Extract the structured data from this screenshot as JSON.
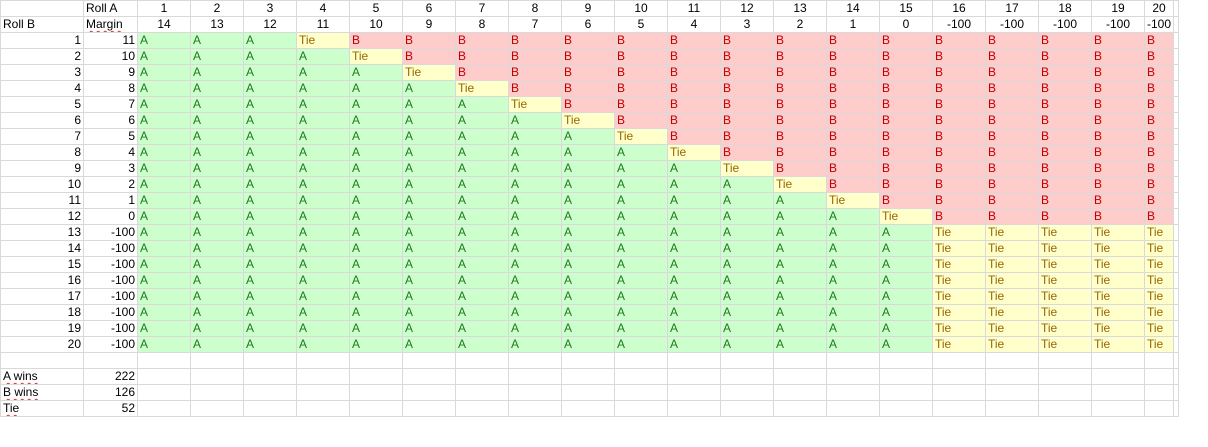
{
  "labels": {
    "roll_a": "Roll A",
    "margin": "Margin",
    "roll_b": "Roll B"
  },
  "roll_a": [
    "1",
    "2",
    "3",
    "4",
    "5",
    "6",
    "7",
    "8",
    "9",
    "10",
    "11",
    "12",
    "13",
    "14",
    "15",
    "16",
    "17",
    "18",
    "19",
    "20"
  ],
  "margin_a": [
    "14",
    "13",
    "12",
    "11",
    "10",
    "9",
    "8",
    "7",
    "6",
    "5",
    "4",
    "3",
    "2",
    "1",
    "0",
    "-100",
    "-100",
    "-100",
    "-100",
    "-100"
  ],
  "roll_b": [
    "1",
    "2",
    "3",
    "4",
    "5",
    "6",
    "7",
    "8",
    "9",
    "10",
    "11",
    "12",
    "13",
    "14",
    "15",
    "16",
    "17",
    "18",
    "19",
    "20"
  ],
  "margin_b": [
    "11",
    "10",
    "9",
    "8",
    "7",
    "6",
    "5",
    "4",
    "3",
    "2",
    "1",
    "0",
    "-100",
    "-100",
    "-100",
    "-100",
    "-100",
    "-100",
    "-100",
    "-100"
  ],
  "result_labels": {
    "a": "A",
    "b": "B",
    "tie": "Tie"
  },
  "colors": {
    "a_bg": "#ccffcc",
    "a_fg": "#1f7a1f",
    "b_bg": "#ffcccc",
    "b_fg": "#c00000",
    "tie_bg": "#ffffcc",
    "tie_fg": "#996600"
  },
  "summary": [
    {
      "label": "A wins",
      "value": "222"
    },
    {
      "label": "B wins",
      "value": "126"
    },
    {
      "label": "Tie",
      "value": "52"
    }
  ]
}
